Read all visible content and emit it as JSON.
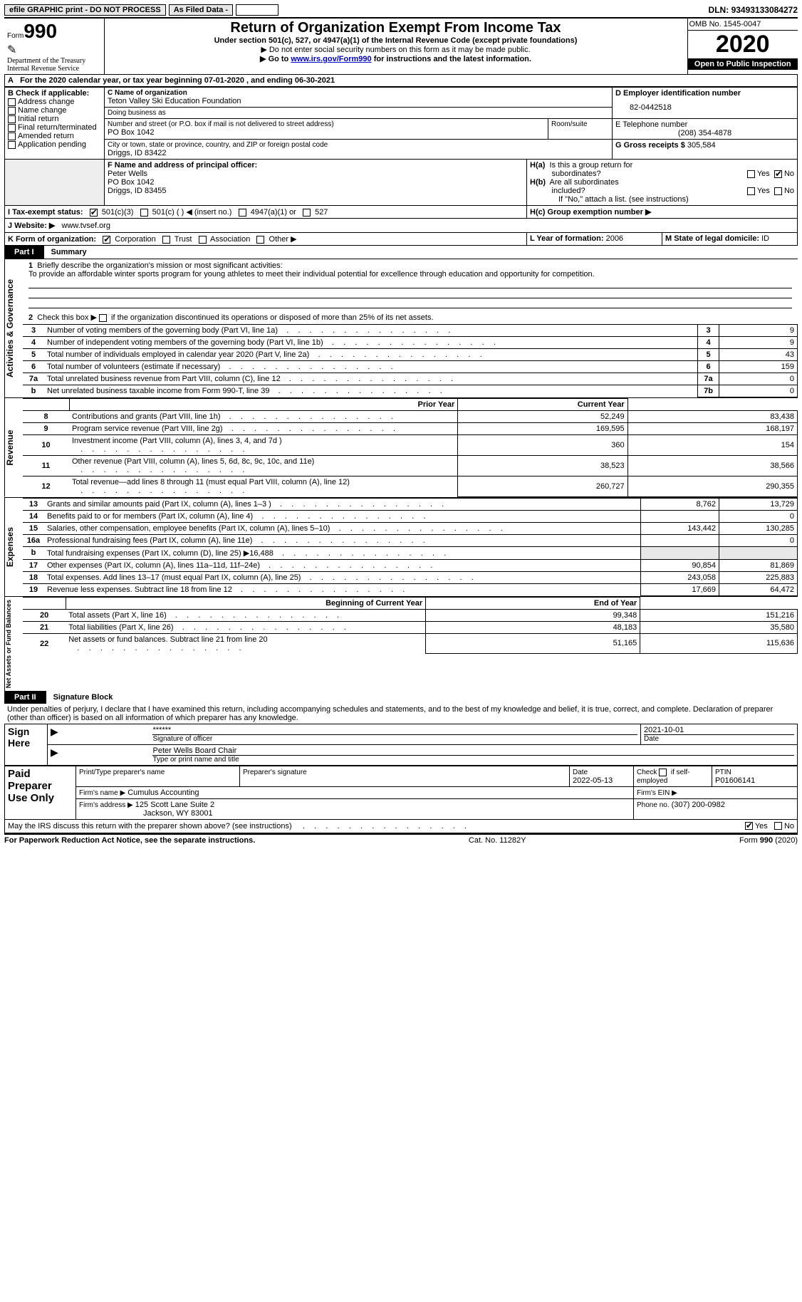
{
  "topbar": {
    "efile": "efile GRAPHIC print - DO NOT PROCESS",
    "asfiled": "As Filed Data -",
    "dln_label": "DLN:",
    "dln": "93493133084272"
  },
  "header": {
    "form_prefix": "Form",
    "form_no": "990",
    "dept": "Department of the Treasury\nInternal Revenue Service",
    "title": "Return of Organization Exempt From Income Tax",
    "subtitle": "Under section 501(c), 527, or 4947(a)(1) of the Internal Revenue Code (except private foundations)",
    "warn1": "▶ Do not enter social security numbers on this form as it may be made public.",
    "warn2a": "▶ Go to ",
    "warn2_link": "www.irs.gov/Form990",
    "warn2b": " for instructions and the latest information.",
    "omb": "OMB No. 1545-0047",
    "year": "2020",
    "inspect": "Open to Public Inspection"
  },
  "a_line": {
    "prefix": "A",
    "text": "For the 2020 calendar year, or tax year beginning 07-01-2020   , and ending 06-30-2021"
  },
  "b": {
    "title": "B Check if applicable:",
    "items": [
      "Address change",
      "Name change",
      "Initial return",
      "Final return/terminated",
      "Amended return",
      "Application pending"
    ]
  },
  "c": {
    "label": "C Name of organization",
    "name": "Teton Valley Ski Education Foundation",
    "dba_label": "Doing business as",
    "dba": "",
    "street_label": "Number and street (or P.O. box if mail is not delivered to street address)",
    "street": "PO Box 1042",
    "room_label": "Room/suite",
    "room": "",
    "city_label": "City or town, state or province, country, and ZIP or foreign postal code",
    "city": "Driggs, ID  83422"
  },
  "d": {
    "label": "D Employer identification number",
    "ein": "82-0442518"
  },
  "e": {
    "label": "E Telephone number",
    "phone": "(208) 354-4878"
  },
  "g": {
    "label": "G Gross receipts $",
    "amount": "305,584"
  },
  "f": {
    "label": "F  Name and address of principal officer:",
    "name": "Peter Wells",
    "street": "PO Box 1042",
    "city": "Driggs, ID  83455"
  },
  "h": {
    "a": "H(a)  Is this a group return for subordinates?",
    "a_yes": "Yes",
    "a_no": "No",
    "a_checked": "no",
    "b": "H(b)  Are all subordinates included?",
    "b_note": "If \"No,\" attach a list. (see instructions)",
    "c": "H(c)  Group exemption number ▶"
  },
  "i": {
    "label": "I   Tax-exempt status:",
    "opts": [
      "501(c)(3)",
      "501(c) (   ) ◀ (insert no.)",
      "4947(a)(1) or",
      "527"
    ],
    "checked": 0
  },
  "j": {
    "label": "J   Website: ▶",
    "site": "www.tvsef.org"
  },
  "k": {
    "label": "K Form of organization:",
    "opts": [
      "Corporation",
      "Trust",
      "Association",
      "Other ▶"
    ],
    "checked": 0
  },
  "l": {
    "label": "L Year of formation:",
    "val": "2006"
  },
  "m": {
    "label": "M State of legal domicile:",
    "val": "ID"
  },
  "partI": {
    "part": "Part I",
    "title": "Summary",
    "q1_label": "1",
    "q1": "Briefly describe the organization's mission or most significant activities:",
    "q1_text": "To provide an affordable winter sports program for young athletes to meet their individual potential for excellence through education and opportunity for competition.",
    "q2_label": "2",
    "q2": "Check this box ▶        if the organization discontinued its operations or disposed of more than 25% of its net assets.",
    "gov_rows": [
      {
        "n": "3",
        "t": "Number of voting members of the governing body (Part VI, line 1a)",
        "k": "3",
        "v": "9"
      },
      {
        "n": "4",
        "t": "Number of independent voting members of the governing body (Part VI, line 1b)",
        "k": "4",
        "v": "9"
      },
      {
        "n": "5",
        "t": "Total number of individuals employed in calendar year 2020 (Part V, line 2a)",
        "k": "5",
        "v": "43"
      },
      {
        "n": "6",
        "t": "Total number of volunteers (estimate if necessary)",
        "k": "6",
        "v": "159"
      },
      {
        "n": "7a",
        "t": "Total unrelated business revenue from Part VIII, column (C), line 12",
        "k": "7a",
        "v": "0"
      },
      {
        "n": "b",
        "t": "Net unrelated business taxable income from Form 990-T, line 39",
        "k": "7b",
        "v": "0"
      }
    ],
    "col_head": {
      "prior": "Prior Year",
      "current": "Current Year"
    },
    "revenue_rows": [
      {
        "n": "8",
        "t": "Contributions and grants (Part VIII, line 1h)",
        "p": "52,249",
        "c": "83,438"
      },
      {
        "n": "9",
        "t": "Program service revenue (Part VIII, line 2g)",
        "p": "169,595",
        "c": "168,197"
      },
      {
        "n": "10",
        "t": "Investment income (Part VIII, column (A), lines 3, 4, and 7d )",
        "p": "360",
        "c": "154"
      },
      {
        "n": "11",
        "t": "Other revenue (Part VIII, column (A), lines 5, 6d, 8c, 9c, 10c, and 11e)",
        "p": "38,523",
        "c": "38,566"
      },
      {
        "n": "12",
        "t": "Total revenue—add lines 8 through 11 (must equal Part VIII, column (A), line 12)",
        "p": "260,727",
        "c": "290,355"
      }
    ],
    "expenses_rows": [
      {
        "n": "13",
        "t": "Grants and similar amounts paid (Part IX, column (A), lines 1–3 )",
        "p": "8,762",
        "c": "13,729"
      },
      {
        "n": "14",
        "t": "Benefits paid to or for members (Part IX, column (A), line 4)",
        "p": "",
        "c": "0"
      },
      {
        "n": "15",
        "t": "Salaries, other compensation, employee benefits (Part IX, column (A), lines 5–10)",
        "p": "143,442",
        "c": "130,285"
      },
      {
        "n": "16a",
        "t": "Professional fundraising fees (Part IX, column (A), line 11e)",
        "p": "",
        "c": "0"
      },
      {
        "n": "b",
        "t": "Total fundraising expenses (Part IX, column (D), line 25) ▶16,488",
        "p": "grey",
        "c": "grey"
      },
      {
        "n": "17",
        "t": "Other expenses (Part IX, column (A), lines 11a–11d, 11f–24e)",
        "p": "90,854",
        "c": "81,869"
      },
      {
        "n": "18",
        "t": "Total expenses. Add lines 13–17 (must equal Part IX, column (A), line 25)",
        "p": "243,058",
        "c": "225,883"
      },
      {
        "n": "19",
        "t": "Revenue less expenses. Subtract line 18 from line 12",
        "p": "17,669",
        "c": "64,472"
      }
    ],
    "na_head": {
      "beg": "Beginning of Current Year",
      "end": "End of Year"
    },
    "netassets_rows": [
      {
        "n": "20",
        "t": "Total assets (Part X, line 16)",
        "p": "99,348",
        "c": "151,216"
      },
      {
        "n": "21",
        "t": "Total liabilities (Part X, line 26)",
        "p": "48,183",
        "c": "35,580"
      },
      {
        "n": "22",
        "t": "Net assets or fund balances. Subtract line 21 from line 20",
        "p": "51,165",
        "c": "115,636"
      }
    ]
  },
  "partII": {
    "part": "Part II",
    "title": "Signature Block",
    "decl": "Under penalties of perjury, I declare that I have examined this return, including accompanying schedules and statements, and to the best of my knowledge and belief, it is true, correct, and complete. Declaration of preparer (other than officer) is based on all information of which preparer has any knowledge.",
    "sign_here": "Sign Here",
    "stars": "******",
    "sig_label": "Signature of officer",
    "date": "2021-10-01",
    "date_label": "Date",
    "name_title": "Peter Wells  Board Chair",
    "name_label": "Type or print name and title",
    "paid": "Paid Preparer Use Only",
    "prep_cols": [
      "Print/Type preparer's name",
      "Preparer's signature",
      "Date",
      "Check        if self-employed",
      "PTIN"
    ],
    "prep_date": "2022-05-13",
    "ptin": "P01606141",
    "firm_name_label": "Firm's name    ▶",
    "firm_name": "Cumulus Accounting",
    "firm_ein_label": "Firm's EIN ▶",
    "firm_addr_label": "Firm's address ▶",
    "firm_addr": "125 Scott Lane Suite 2",
    "firm_city": "Jackson, WY  83001",
    "phone_label": "Phone no.",
    "phone": "(307) 200-0982",
    "discuss": "May the IRS discuss this return with the preparer shown above? (see instructions)",
    "yes": "Yes",
    "no": "No"
  },
  "footer": {
    "left": "For Paperwork Reduction Act Notice, see the separate instructions.",
    "mid": "Cat. No. 11282Y",
    "right": "Form 990 (2020)"
  },
  "side_labels": {
    "gov": "Activities & Governance",
    "rev": "Revenue",
    "exp": "Expenses",
    "na": "Net Assets or Fund Balances"
  }
}
